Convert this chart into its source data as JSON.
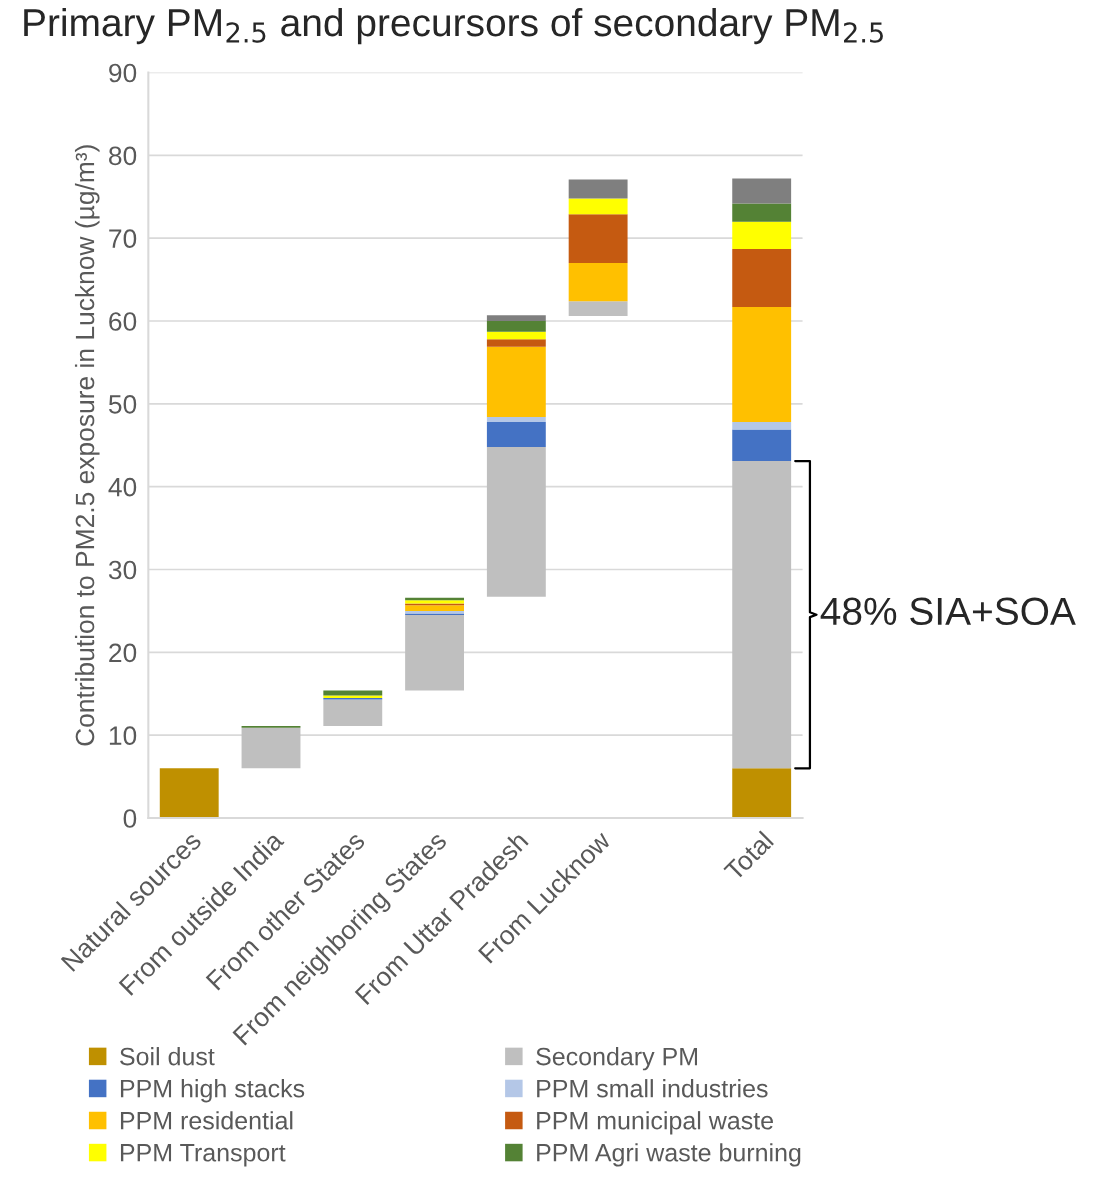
{
  "chart_data": {
    "type": "bar",
    "title": "Primary PM$_{2.5}$ and precursors of secondary PM$_{2.5}$",
    "ylabel": "Contribution to PM2.5 exposure in Lucknow (µg/m³)",
    "categories": [
      "Natural sources",
      "From outside India",
      "From other States",
      "From neighboring States",
      "From Uttar Pradesh",
      "From Lucknow",
      null,
      "Total"
    ],
    "series": [
      {
        "name": "Soil dust",
        "color": "#bf9000",
        "values": [
          6,
          null,
          null,
          null,
          null,
          null,
          null,
          6
        ],
        "base": [
          0,
          null,
          null,
          null,
          null,
          null,
          null,
          0
        ]
      },
      {
        "name": "Secondary PM",
        "color": "#bfbfbf",
        "values": [
          null,
          4.9,
          3.2,
          9.1,
          18.1,
          1.8,
          null,
          37.1
        ],
        "base": [
          null,
          6,
          11.1,
          15.4,
          26.7,
          60.6,
          null,
          6
        ]
      },
      {
        "name": "PPM high stacks",
        "color": "#4472c4",
        "values": [
          null,
          null,
          0.2,
          0.2,
          3.0,
          null,
          null,
          3.8
        ],
        "base": [
          null,
          null,
          14.3,
          24.5,
          44.8,
          null,
          null,
          43.1
        ]
      },
      {
        "name": "PPM small industries",
        "color": "#b4c7e7",
        "values": [
          null,
          null,
          null,
          0.3,
          0.6,
          null,
          null,
          0.9
        ],
        "base": [
          null,
          null,
          null,
          24.7,
          47.8,
          null,
          null,
          46.9
        ]
      },
      {
        "name": "PPM residential",
        "color": "#ffc000",
        "values": [
          null,
          null,
          null,
          0.7,
          8.5,
          4.6,
          null,
          13.9
        ],
        "base": [
          null,
          null,
          null,
          25.0,
          48.4,
          62.4,
          null,
          47.8
        ]
      },
      {
        "name": "PPM municipal waste",
        "color": "#c55a11",
        "values": [
          null,
          null,
          null,
          0.2,
          0.9,
          5.9,
          null,
          7.0
        ],
        "base": [
          null,
          null,
          null,
          25.7,
          56.9,
          67.0,
          null,
          61.7
        ]
      },
      {
        "name": "PPM Transport",
        "color": "#ffff00",
        "values": [
          null,
          null,
          0.3,
          0.4,
          0.9,
          1.9,
          null,
          3.3
        ],
        "base": [
          null,
          null,
          14.5,
          25.9,
          57.8,
          72.9,
          null,
          68.7
        ]
      },
      {
        "name": "PPM Agri waste burning",
        "color": "#548235",
        "values": [
          null,
          0.2,
          0.6,
          0.3,
          1.3,
          null,
          null,
          2.2
        ],
        "base": [
          null,
          10.9,
          14.8,
          26.3,
          58.7,
          null,
          null,
          72.0
        ]
      },
      {
        "color": "#7f7f7f",
        "values": [
          null,
          null,
          null,
          null,
          0.7,
          2.3,
          null,
          3.0
        ],
        "base": [
          null,
          null,
          null,
          null,
          60.0,
          74.8,
          null,
          74.2
        ]
      }
    ],
    "ylim": [
      0,
      90
    ],
    "yticks": [
      0,
      10,
      20,
      30,
      40,
      50,
      60,
      70,
      80,
      90
    ],
    "grid": "y",
    "legend": "bottom",
    "annotations": [
      "48% SIA+SOA"
    ]
  }
}
